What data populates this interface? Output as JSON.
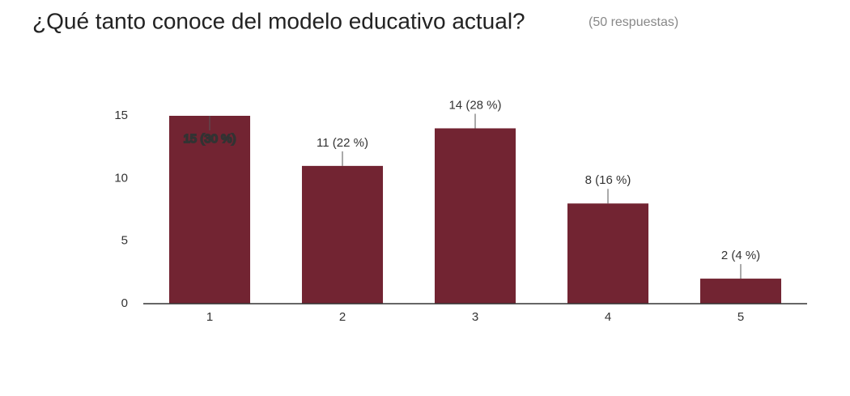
{
  "chart_data": {
    "type": "bar",
    "title": "¿Qué tanto conoce del modelo educativo actual?",
    "subtitle": "(50 respuestas)",
    "categories": [
      "1",
      "2",
      "3",
      "4",
      "5"
    ],
    "values": [
      15,
      11,
      14,
      8,
      2
    ],
    "value_labels": [
      "15 (30 %)",
      "11 (22 %)",
      "14 (28 %)",
      "8 (16 %)",
      "2 (4 %)"
    ],
    "color": "#722432",
    "ylim": [
      0,
      15
    ],
    "yticks": [
      0,
      5,
      10,
      15
    ],
    "grid": false
  }
}
